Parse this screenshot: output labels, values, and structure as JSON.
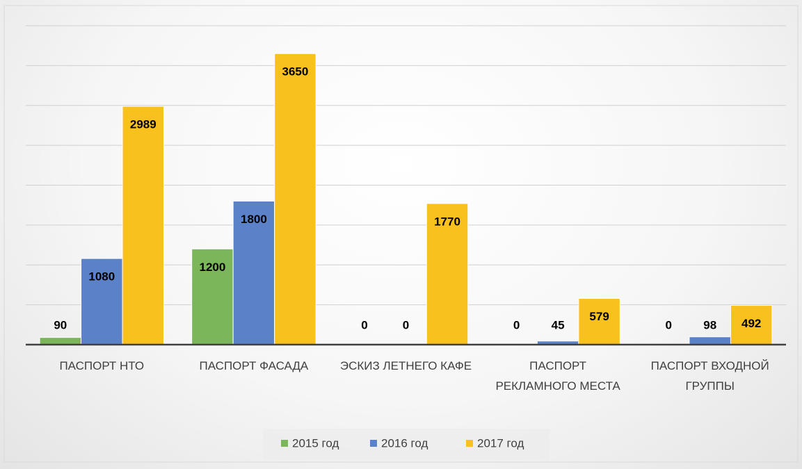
{
  "chart_data": {
    "type": "bar",
    "categories": [
      "ПАСПОРТ НТО",
      "ПАСПОРТ ФАСАДА",
      "ЭСКИЗ ЛЕТНЕГО КАФЕ",
      "ПАСПОРТ РЕКЛАМНОГО МЕСТА",
      "ПАСПОРТ ВХОДНОЙ ГРУППЫ"
    ],
    "series": [
      {
        "name": "2015 год",
        "color": "#7cb65a",
        "values": [
          90,
          1200,
          0,
          0,
          0
        ]
      },
      {
        "name": "2016 год",
        "color": "#5b82c8",
        "values": [
          1080,
          1800,
          0,
          45,
          98
        ]
      },
      {
        "name": "2017 год",
        "color": "#f9c11e",
        "values": [
          2989,
          3650,
          1770,
          579,
          492
        ]
      }
    ],
    "ylim": [
      0,
      4000
    ],
    "yticks": [
      0,
      500,
      1000,
      1500,
      2000,
      2500,
      3000,
      3500,
      4000
    ],
    "grid": true,
    "legend": "bottom"
  }
}
